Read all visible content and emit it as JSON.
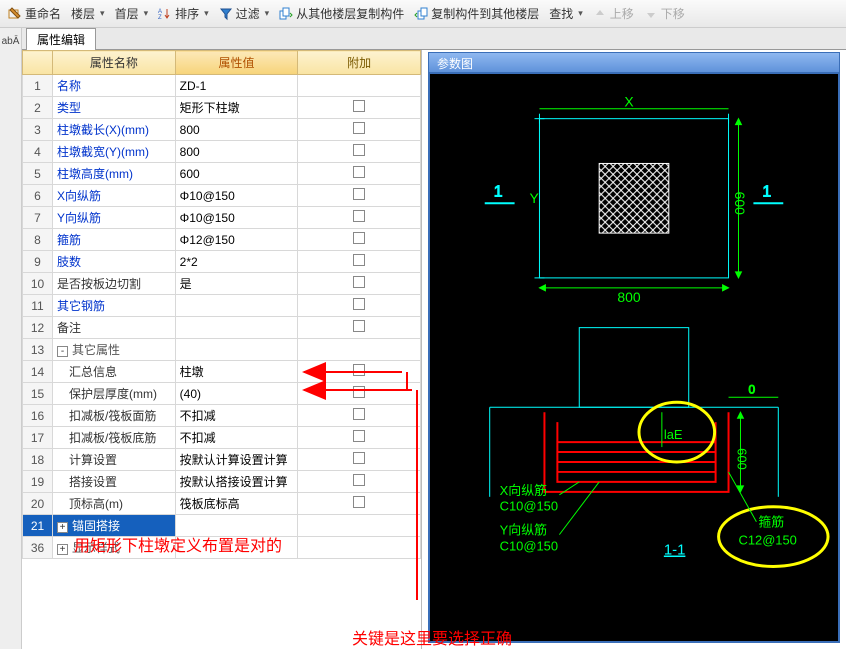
{
  "toolbar": {
    "rename": "重命名",
    "layer": "楼层",
    "layer_val": "首层",
    "sort": "排序",
    "filter": "过滤",
    "copy_from": "从其他楼层复制构件",
    "copy_to": "复制构件到其他楼层",
    "find": "查找",
    "up": "上移",
    "down": "下移"
  },
  "tab": "属性编辑",
  "headers": {
    "name": "属性名称",
    "value": "属性值",
    "add": "附加"
  },
  "rows": [
    {
      "n": "1",
      "name": "名称",
      "val": "ZD-1",
      "cls": "link",
      "chk": false
    },
    {
      "n": "2",
      "name": "类型",
      "val": "矩形下柱墩",
      "cls": "link",
      "chk": true
    },
    {
      "n": "3",
      "name": "柱墩截长(X)(mm)",
      "val": "800",
      "cls": "link",
      "chk": true
    },
    {
      "n": "4",
      "name": "柱墩截宽(Y)(mm)",
      "val": "800",
      "cls": "link",
      "chk": true
    },
    {
      "n": "5",
      "name": "柱墩高度(mm)",
      "val": "600",
      "cls": "link",
      "chk": true
    },
    {
      "n": "6",
      "name": "X向纵筋",
      "val": "Φ10@150",
      "cls": "link",
      "chk": true
    },
    {
      "n": "7",
      "name": "Y向纵筋",
      "val": "Φ10@150",
      "cls": "link",
      "chk": true
    },
    {
      "n": "8",
      "name": "箍筋",
      "val": "Φ12@150",
      "cls": "link",
      "chk": true
    },
    {
      "n": "9",
      "name": "肢数",
      "val": "2*2",
      "cls": "link",
      "chk": true
    },
    {
      "n": "10",
      "name": "是否按板边切割",
      "val": "是",
      "cls": "sub",
      "chk": true
    },
    {
      "n": "11",
      "name": "其它钢筋",
      "val": "",
      "cls": "link",
      "chk": false
    },
    {
      "n": "12",
      "name": "备注",
      "val": "",
      "cls": "sub",
      "chk": true
    },
    {
      "n": "13",
      "name": "其它属性",
      "val": "",
      "cls": "group",
      "exp": "-"
    },
    {
      "n": "14",
      "name": "汇总信息",
      "val": "柱墩",
      "cls": "sub",
      "indent": 1,
      "chk": true
    },
    {
      "n": "15",
      "name": "保护层厚度(mm)",
      "val": "(40)",
      "cls": "sub",
      "indent": 1,
      "chk": true
    },
    {
      "n": "16",
      "name": "扣减板/筏板面筋",
      "val": "不扣减",
      "cls": "sub",
      "indent": 1,
      "chk": true
    },
    {
      "n": "17",
      "name": "扣减板/筏板底筋",
      "val": "不扣减",
      "cls": "sub",
      "indent": 1,
      "chk": true
    },
    {
      "n": "18",
      "name": "计算设置",
      "val": "按默认计算设置计算",
      "cls": "sub",
      "indent": 1,
      "chk": false
    },
    {
      "n": "19",
      "name": "搭接设置",
      "val": "按默认搭接设置计算",
      "cls": "sub",
      "indent": 1,
      "chk": false
    },
    {
      "n": "20",
      "name": "顶标高(m)",
      "val": "筏板底标高",
      "cls": "sub",
      "indent": 1,
      "chk": true
    },
    {
      "n": "21",
      "name": "锚固搭接",
      "val": "",
      "cls": "group sel",
      "exp": "+"
    },
    {
      "n": "36",
      "name": "显示样式",
      "val": "",
      "cls": "group",
      "exp": "+"
    }
  ],
  "annotations": {
    "a1": "用矩形下柱墩定义布置是对的",
    "a2": "关键是这里要选择正确"
  },
  "diagram": {
    "title": "参数图",
    "x_label": "X",
    "y_label": "Y",
    "dim_800": "800",
    "dim_009": "009",
    "one": "1",
    "zero": "0",
    "lae": "laE",
    "x_rebar_lbl": "X向纵筋",
    "x_rebar_val": "C10@150",
    "y_rebar_lbl": "Y向纵筋",
    "y_rebar_val": "C10@150",
    "stirrup_lbl": "箍筋",
    "stirrup_val": "C12@150",
    "section": "1-1",
    "cyan": "#00ffff",
    "green": "#00ff00",
    "yellow": "#ffff00",
    "red": "#ff0000",
    "white": "#ffffff"
  }
}
